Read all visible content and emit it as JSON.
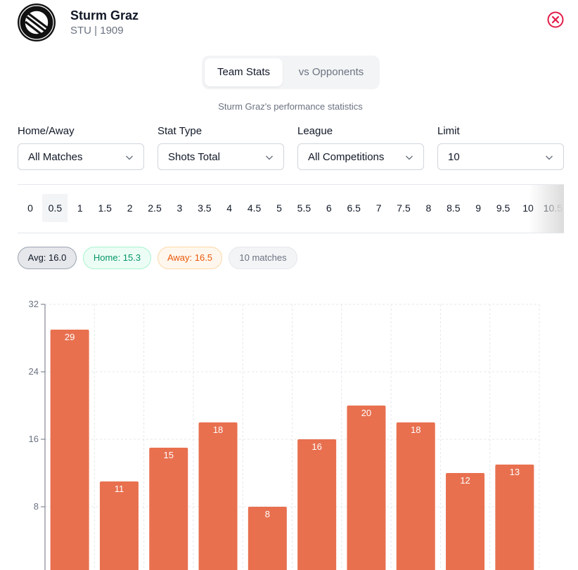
{
  "header": {
    "team_name": "Sturm Graz",
    "team_meta": "STU | 1909",
    "logo_icon": "club-crest-icon",
    "close_icon": "close-circle-icon",
    "accent": "#e11d48"
  },
  "tabs": [
    {
      "label": "Team Stats",
      "active": true
    },
    {
      "label": "vs Opponents",
      "active": false
    }
  ],
  "subtitle": "Sturm Graz's performance statistics",
  "filters": [
    {
      "label": "Home/Away",
      "value": "All Matches"
    },
    {
      "label": "Stat Type",
      "value": "Shots Total"
    },
    {
      "label": "League",
      "value": "All Competitions"
    },
    {
      "label": "Limit",
      "value": "10"
    }
  ],
  "lines": {
    "values": [
      "0",
      "0.5",
      "1",
      "1.5",
      "2",
      "2.5",
      "3",
      "3.5",
      "4",
      "4.5",
      "5",
      "5.5",
      "6",
      "6.5",
      "7",
      "7.5",
      "8",
      "8.5",
      "9",
      "9.5",
      "10",
      "10.5"
    ],
    "selected": "0.5"
  },
  "badges": {
    "avg": "Avg: 16.0",
    "home": "Home: 15.3",
    "away": "Away: 16.5",
    "matches": "10 matches"
  },
  "chart_data": {
    "type": "bar",
    "values": [
      29,
      11,
      15,
      18,
      8,
      16,
      20,
      18,
      12,
      13
    ],
    "ylim": [
      0,
      32
    ],
    "yticks": [
      8,
      16,
      24,
      32
    ],
    "bar_color": "#e8704f",
    "grid": true
  }
}
